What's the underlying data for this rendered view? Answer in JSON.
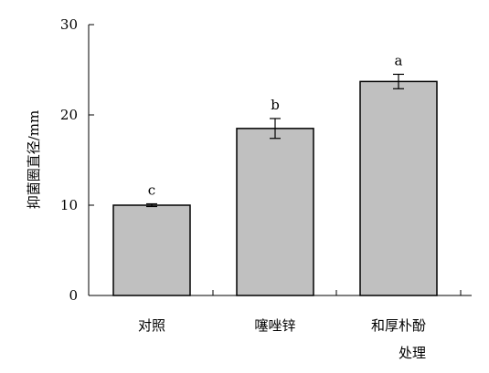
{
  "chart_data": {
    "type": "bar",
    "categories": [
      "对照",
      "噻唑锌",
      "和厚朴酚"
    ],
    "values": [
      10.0,
      18.5,
      23.7
    ],
    "errors": [
      0.15,
      1.1,
      0.8
    ],
    "significance": [
      "c",
      "b",
      "a"
    ],
    "title": "",
    "xlabel": "处理",
    "ylabel": "抑菌圈直径/mm",
    "ylim": [
      0,
      30
    ],
    "yticks": [
      0,
      10,
      20,
      30
    ],
    "grid": false,
    "legend": "none",
    "bar_color": "#c0c0c0",
    "edge_color": "#000000"
  }
}
